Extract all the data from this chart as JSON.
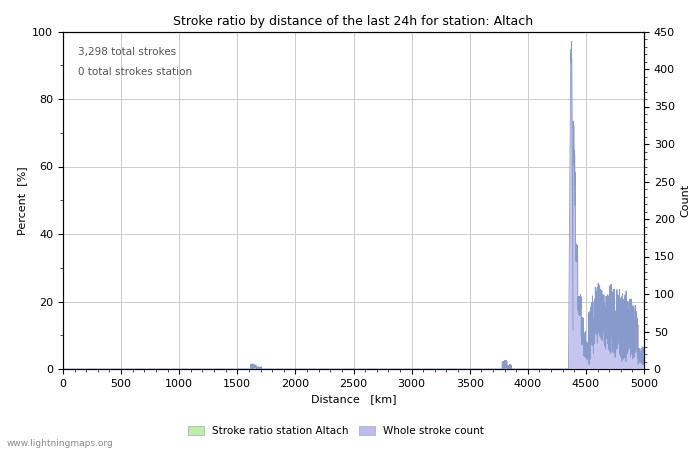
{
  "title": "Stroke ratio by distance of the last 24h for station: Altach",
  "xlabel": "Distance   [km]",
  "ylabel_left": "Percent  [%]",
  "ylabel_right": "Count",
  "annotation_line1": "3,298 total strokes",
  "annotation_line2": "0 total strokes station",
  "watermark": "www.lightningmaps.org",
  "xlim": [
    0,
    5000
  ],
  "ylim_left": [
    0,
    100
  ],
  "ylim_right": [
    0,
    450
  ],
  "xticks": [
    0,
    500,
    1000,
    1500,
    2000,
    2500,
    3000,
    3500,
    4000,
    4500,
    5000
  ],
  "yticks_left": [
    0,
    20,
    40,
    60,
    80,
    100
  ],
  "yticks_right": [
    0,
    50,
    100,
    150,
    200,
    250,
    300,
    350,
    400,
    450
  ],
  "bg_color": "#ffffff",
  "grid_color": "#cccccc",
  "line_color": "#8899cc",
  "fill_color": "#bbbbee",
  "legend_stroke_ratio_label": "Stroke ratio station Altach",
  "legend_stroke_count_label": "Whole stroke count",
  "legend_stroke_ratio_color": "#bbeeaa",
  "legend_stroke_count_color": "#bbbbee"
}
